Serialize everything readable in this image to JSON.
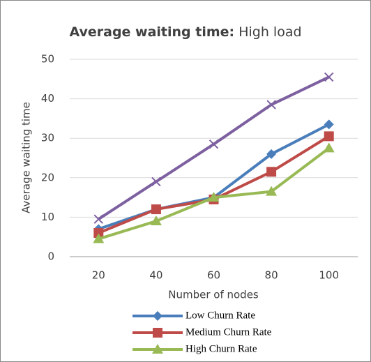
{
  "chart_data": {
    "type": "line",
    "title": [
      "Average waiting time:",
      "High load"
    ],
    "x_label": "Number of nodes",
    "y_label": "Average waiting time",
    "categories": [
      "20",
      "40",
      "60",
      "80",
      "100"
    ],
    "ylim": [
      0,
      50
    ],
    "yticks": [
      0,
      10,
      20,
      30,
      40,
      50
    ],
    "grid": true,
    "legend": "bottom",
    "series": [
      {
        "name": "Low Churn Rate",
        "color": "#4a7ebb",
        "marker": "diamond",
        "values": [
          7,
          12,
          15,
          26,
          33.5
        ]
      },
      {
        "name": "Medium Churn Rate",
        "color": "#be4b48",
        "marker": "square",
        "values": [
          6,
          12,
          14.5,
          21.5,
          30.5
        ]
      },
      {
        "name": "High Churn Rate",
        "color": "#98b954",
        "marker": "triangle",
        "values": [
          4.5,
          9,
          15,
          16.5,
          27.5
        ]
      },
      {
        "color": "#7d60a0",
        "marker": "x",
        "values": [
          9.5,
          19,
          28.5,
          38.5,
          45.5
        ]
      }
    ]
  }
}
